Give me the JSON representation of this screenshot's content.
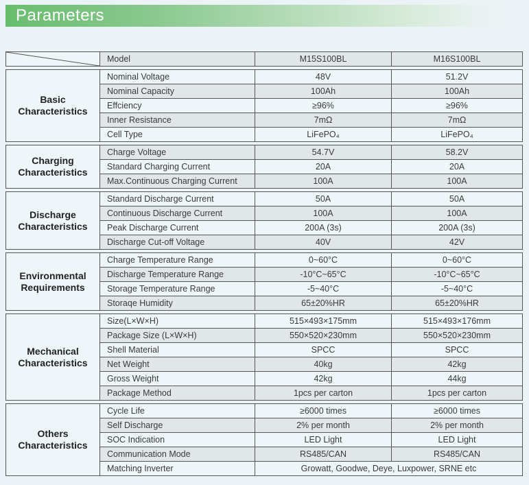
{
  "title": "Parameters",
  "table": {
    "model_row": {
      "label": "Model",
      "m1": "M15S100BL",
      "m2": "M16S100BL"
    },
    "sections": [
      {
        "title": "Basic Characteristics",
        "rows": [
          {
            "label": "Nominal Voltage",
            "v1": "48V",
            "v2": "51.2V"
          },
          {
            "label": "Nominal Capacity",
            "v1": "100Ah",
            "v2": "100Ah"
          },
          {
            "label": "Effciency",
            "v1": "≥96%",
            "v2": "≥96%"
          },
          {
            "label": "Inner Resistance",
            "v1": "7mΩ",
            "v2": "7mΩ"
          },
          {
            "label": "Cell Type",
            "v1": "LiFePO₄",
            "v2": "LiFePO₄"
          }
        ]
      },
      {
        "title": "Charging Characteristics",
        "rows": [
          {
            "label": "Charge Voltage",
            "v1": "54.7V",
            "v2": "58.2V"
          },
          {
            "label": "Standard Charging Current",
            "v1": "20A",
            "v2": "20A"
          },
          {
            "label": "Max.Continuous Charging Current",
            "v1": "100A",
            "v2": "100A"
          }
        ]
      },
      {
        "title": "Discharge Characteristics",
        "rows": [
          {
            "label": "Standard Discharge Current",
            "v1": "50A",
            "v2": "50A"
          },
          {
            "label": "Continuous Discharge Current",
            "v1": "100A",
            "v2": "100A"
          },
          {
            "label": "Peak Discharge Current",
            "v1": "200A (3s)",
            "v2": "200A (3s)"
          },
          {
            "label": "Discharge Cut-off Voltage",
            "v1": "40V",
            "v2": "42V"
          }
        ]
      },
      {
        "title": "Environmental Requirements",
        "rows": [
          {
            "label": "Charge Temperature Range",
            "v1": "0~60°C",
            "v2": "0~60°C"
          },
          {
            "label": "Discharge Temperature Range",
            "v1": "-10°C~65°C",
            "v2": "-10°C~65°C"
          },
          {
            "label": "Storage Temperature Range",
            "v1": "-5~40°C",
            "v2": "-5~40°C"
          },
          {
            "label": "Storaqe Humidity",
            "v1": "65±20%HR",
            "v2": "65±20%HR"
          }
        ]
      },
      {
        "title": "Mechanical Characteristics",
        "rows": [
          {
            "label": "Size(L×W×H)",
            "v1": "515×493×175mm",
            "v2": "515×493×176mm"
          },
          {
            "label": "Package Size (L×W×H)",
            "v1": "550×520×230mm",
            "v2": "550×520×230mm"
          },
          {
            "label": "Shell Material",
            "v1": "SPCC",
            "v2": "SPCC"
          },
          {
            "label": "Net Weight",
            "v1": "40kg",
            "v2": "42kg"
          },
          {
            "label": "Gross Weight",
            "v1": "42kg",
            "v2": "44kg"
          },
          {
            "label": "Package Method",
            "v1": "1pcs per carton",
            "v2": "1pcs per carton"
          }
        ]
      },
      {
        "title": "Others Characteristics",
        "rows": [
          {
            "label": "Cycle Life",
            "v1": "≥6000 times",
            "v2": "≥6000 times"
          },
          {
            "label": "Self Discharge",
            "v1": "2% per month",
            "v2": "2% per month"
          },
          {
            "label": "SOC Indication",
            "v1": "LED Light",
            "v2": "LED Light"
          },
          {
            "label": "Communication Mode",
            "v1": "RS485/CAN",
            "v2": "RS485/CAN"
          },
          {
            "label": "Matching Inverter",
            "span": "Growatt, Goodwe, Deye, Luxpower, SRNE etc"
          }
        ]
      }
    ]
  },
  "colors": {
    "accent_green": "#69bd6e",
    "row_shaded": "#e1e6e8",
    "row_light": "#eff6f9",
    "border": "#555555",
    "page_bg": "#ebf3f7",
    "title_text": "#ffffff"
  }
}
